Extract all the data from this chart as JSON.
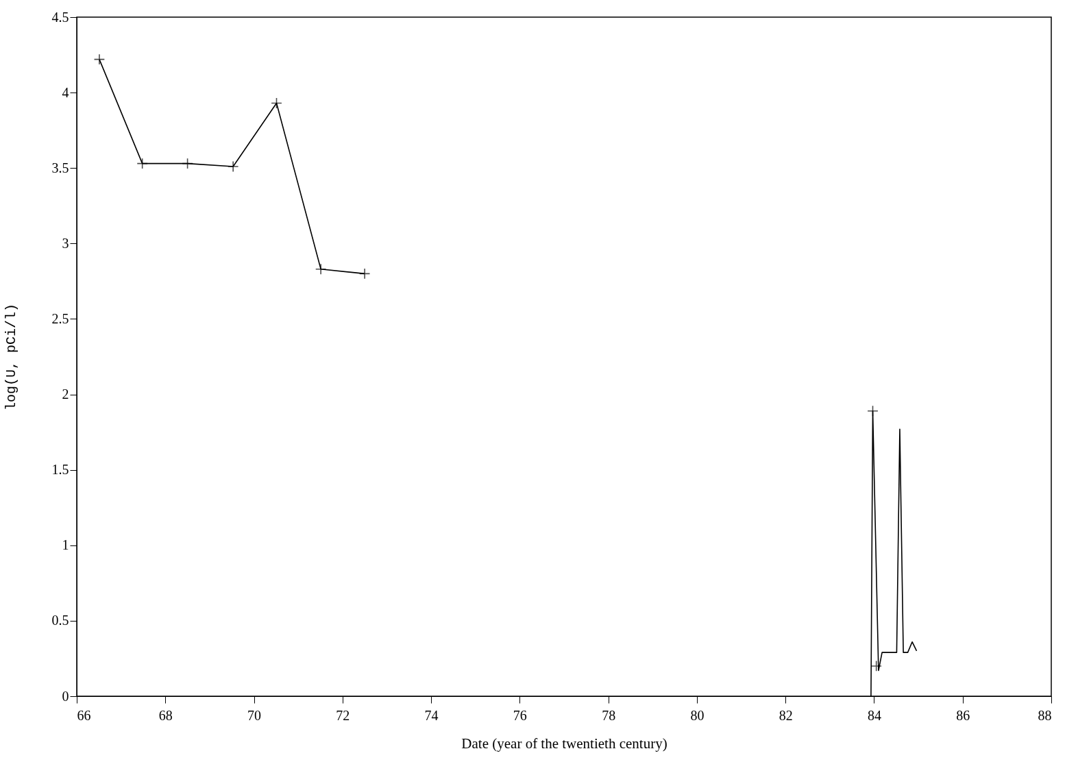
{
  "chart_data": {
    "type": "line",
    "xlabel": "Date (year of the twentieth century)",
    "ylabel": "log(U, pCi/l)",
    "xlim": [
      66,
      88
    ],
    "xticks": [
      66,
      68,
      70,
      72,
      74,
      76,
      78,
      80,
      82,
      84,
      86,
      88
    ],
    "ylim": [
      0,
      4.5
    ],
    "yticks": [
      0,
      0.5,
      1,
      1.5,
      2,
      2.5,
      3,
      3.5,
      4,
      4.5
    ],
    "grid": false,
    "series": [
      {
        "marker": "cross",
        "color": "#000000",
        "x": [
          66.51,
          67.48,
          68.5,
          69.53,
          70.51,
          71.51,
          72.5
        ],
        "values": [
          4.22,
          3.53,
          3.53,
          3.51,
          3.93,
          2.83,
          2.8
        ]
      },
      {
        "marker": "none",
        "color": "#000000",
        "x": [
          83.93,
          83.97,
          84.1,
          84.18,
          84.51,
          84.58,
          84.66,
          84.76,
          84.86,
          84.96
        ],
        "values": [
          0,
          1.89,
          0.17,
          0.29,
          0.29,
          1.77,
          0.29,
          0.29,
          0.36,
          0.3
        ]
      },
      {
        "type": "scatter",
        "marker": "cross",
        "color": "#000000",
        "x": [
          83.97,
          84.05
        ],
        "values": [
          1.89,
          0.2
        ]
      }
    ]
  }
}
